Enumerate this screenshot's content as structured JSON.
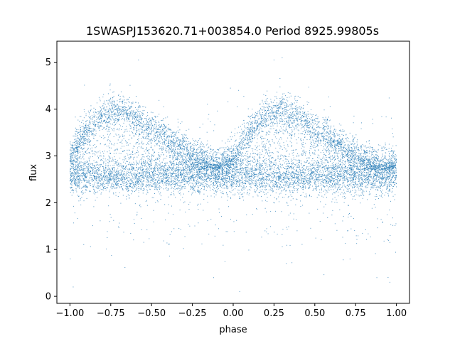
{
  "chart_data": {
    "type": "scatter",
    "title": "1SWASPJ153620.71+003854.0 Period 8925.99805s",
    "xlabel": "phase",
    "ylabel": "flux",
    "xlim": [
      -1.08,
      1.08
    ],
    "ylim": [
      -0.15,
      5.45
    ],
    "xticks": [
      -1.0,
      -0.75,
      -0.5,
      -0.25,
      0.0,
      0.25,
      0.5,
      0.75,
      1.0
    ],
    "xtick_labels": [
      "−1.00",
      "−0.75",
      "−0.50",
      "−0.25",
      "0.00",
      "0.25",
      "0.50",
      "0.75",
      "1.00"
    ],
    "yticks": [
      0,
      1,
      2,
      3,
      4,
      5
    ],
    "ytick_labels": [
      "0",
      "1",
      "2",
      "3",
      "4",
      "5"
    ],
    "grid": false,
    "marker_color": "#1f77b4",
    "series": [
      {
        "values_note_free": true,
        "baseline_band": {
          "x_range": [
            -1.0,
            1.0
          ],
          "y_range": [
            2.2,
            3.0
          ],
          "center": 2.55
        },
        "hump_ridge": [
          {
            "x": -1.0,
            "y": 3.0
          },
          {
            "x": -0.9,
            "y": 3.55
          },
          {
            "x": -0.8,
            "y": 3.9
          },
          {
            "x": -0.7,
            "y": 4.0
          },
          {
            "x": -0.6,
            "y": 3.85
          },
          {
            "x": -0.5,
            "y": 3.6
          },
          {
            "x": -0.4,
            "y": 3.4
          },
          {
            "x": -0.3,
            "y": 3.15
          },
          {
            "x": -0.2,
            "y": 2.95
          },
          {
            "x": -0.1,
            "y": 2.8
          },
          {
            "x": 0.0,
            "y": 3.0
          },
          {
            "x": 0.1,
            "y": 3.55
          },
          {
            "x": 0.2,
            "y": 3.9
          },
          {
            "x": 0.3,
            "y": 4.0
          },
          {
            "x": 0.4,
            "y": 3.85
          },
          {
            "x": 0.5,
            "y": 3.6
          },
          {
            "x": 0.6,
            "y": 3.4
          },
          {
            "x": 0.7,
            "y": 3.15
          },
          {
            "x": 0.8,
            "y": 2.95
          },
          {
            "x": 0.9,
            "y": 2.8
          },
          {
            "x": 1.0,
            "y": 2.9
          }
        ],
        "outliers": [
          {
            "x": -0.12,
            "y": 0.4
          },
          {
            "x": 0.04,
            "y": 0.1
          },
          {
            "x": 0.88,
            "y": 0.4
          },
          {
            "x": 0.96,
            "y": 0.3
          },
          {
            "x": -0.98,
            "y": 0.2
          },
          {
            "x": -0.58,
            "y": 5.05
          },
          {
            "x": 0.25,
            "y": 5.05
          },
          {
            "x": 0.3,
            "y": 5.1
          }
        ]
      }
    ]
  }
}
